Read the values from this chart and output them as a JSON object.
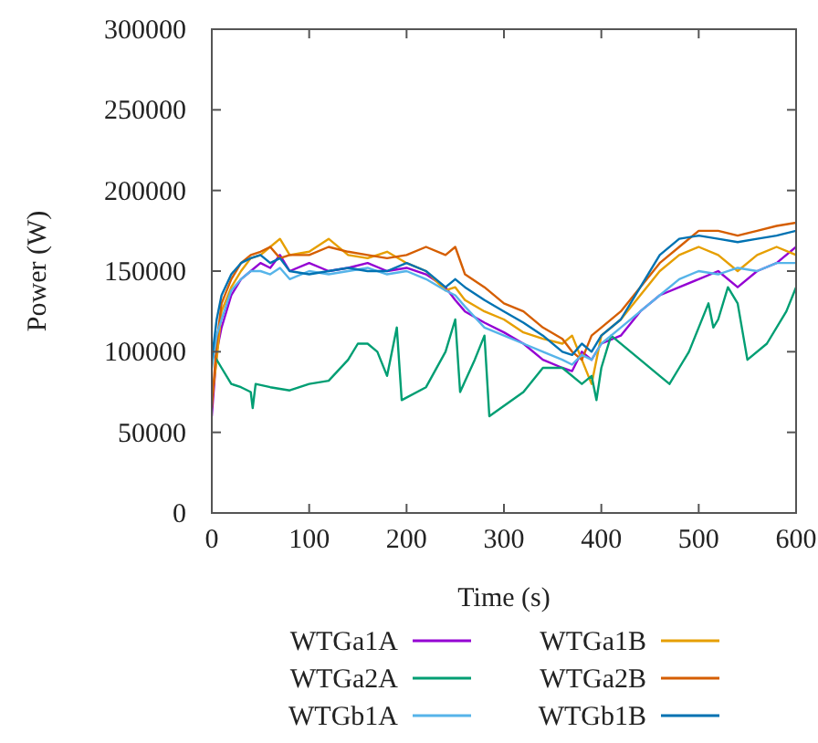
{
  "chart_data": {
    "type": "line",
    "xlabel": "Time (s)",
    "ylabel": "Power (W)",
    "xlim": [
      0,
      600
    ],
    "ylim": [
      0,
      300000
    ],
    "xticks": [
      0,
      100,
      200,
      300,
      400,
      500,
      600
    ],
    "yticks": [
      0,
      50000,
      100000,
      150000,
      200000,
      250000,
      300000
    ],
    "legend": "bottom",
    "grid": false,
    "marker": "none",
    "line_style": "solid",
    "x": [
      0,
      5,
      10,
      20,
      30,
      40,
      50,
      60,
      70,
      80,
      100,
      120,
      140,
      160,
      180,
      200,
      220,
      240,
      250,
      260,
      280,
      300,
      320,
      340,
      360,
      370,
      380,
      390,
      400,
      420,
      440,
      460,
      480,
      500,
      520,
      540,
      560,
      580,
      600
    ],
    "series": [
      {
        "name": "WTGa1A",
        "color": "#9400d3",
        "values": [
          60000,
          100000,
          115000,
          135000,
          145000,
          150000,
          155000,
          152000,
          160000,
          150000,
          155000,
          150000,
          152000,
          155000,
          150000,
          152000,
          148000,
          140000,
          132000,
          125000,
          118000,
          112000,
          105000,
          95000,
          90000,
          88000,
          100000,
          95000,
          105000,
          110000,
          125000,
          135000,
          140000,
          145000,
          150000,
          140000,
          150000,
          155000,
          165000
        ]
      },
      {
        "name": "WTGa1B",
        "color": "#e69f00",
        "values": [
          70000,
          95000,
          125000,
          140000,
          150000,
          158000,
          160000,
          165000,
          170000,
          160000,
          162000,
          170000,
          160000,
          158000,
          162000,
          155000,
          150000,
          138000,
          140000,
          132000,
          125000,
          120000,
          112000,
          108000,
          105000,
          110000,
          95000,
          80000,
          110000,
          120000,
          135000,
          150000,
          160000,
          165000,
          160000,
          150000,
          160000,
          165000,
          160000
        ]
      },
      {
        "name": "WTGa2A",
        "color": "#009e73",
        "x": [
          0,
          5,
          10,
          20,
          30,
          40,
          42,
          45,
          60,
          80,
          100,
          120,
          140,
          150,
          160,
          170,
          180,
          190,
          195,
          220,
          240,
          250,
          255,
          270,
          280,
          285,
          320,
          340,
          360,
          380,
          390,
          395,
          400,
          410,
          440,
          460,
          470,
          480,
          490,
          510,
          515,
          520,
          530,
          540,
          550,
          570,
          590,
          600
        ],
        "values": [
          100000,
          95000,
          90000,
          80000,
          78000,
          75000,
          65000,
          80000,
          78000,
          76000,
          80000,
          82000,
          95000,
          105000,
          105000,
          100000,
          85000,
          115000,
          70000,
          78000,
          100000,
          120000,
          75000,
          95000,
          110000,
          60000,
          75000,
          90000,
          90000,
          80000,
          85000,
          70000,
          90000,
          110000,
          95000,
          85000,
          80000,
          90000,
          100000,
          130000,
          115000,
          120000,
          140000,
          130000,
          95000,
          105000,
          125000,
          140000
        ]
      },
      {
        "name": "WTGa2B",
        "color": "#d55e00",
        "values": [
          65000,
          105000,
          130000,
          145000,
          155000,
          160000,
          162000,
          165000,
          158000,
          160000,
          160000,
          165000,
          162000,
          160000,
          158000,
          160000,
          165000,
          160000,
          165000,
          148000,
          140000,
          130000,
          125000,
          115000,
          108000,
          100000,
          95000,
          110000,
          115000,
          125000,
          140000,
          155000,
          165000,
          175000,
          175000,
          172000,
          175000,
          178000,
          180000
        ]
      },
      {
        "name": "WTGb1A",
        "color": "#56b4e9",
        "values": [
          90000,
          110000,
          120000,
          138000,
          145000,
          150000,
          150000,
          148000,
          152000,
          145000,
          150000,
          148000,
          150000,
          152000,
          148000,
          150000,
          145000,
          138000,
          135000,
          128000,
          115000,
          110000,
          105000,
          100000,
          95000,
          92000,
          98000,
          95000,
          105000,
          115000,
          125000,
          135000,
          145000,
          150000,
          148000,
          152000,
          150000,
          155000,
          155000
        ]
      },
      {
        "name": "WTGb1B",
        "color": "#0072b2",
        "values": [
          95000,
          120000,
          135000,
          148000,
          155000,
          158000,
          160000,
          155000,
          158000,
          150000,
          148000,
          150000,
          152000,
          150000,
          150000,
          155000,
          150000,
          140000,
          145000,
          140000,
          132000,
          125000,
          118000,
          110000,
          100000,
          98000,
          105000,
          100000,
          110000,
          120000,
          140000,
          160000,
          170000,
          172000,
          170000,
          168000,
          170000,
          172000,
          175000
        ]
      }
    ]
  }
}
